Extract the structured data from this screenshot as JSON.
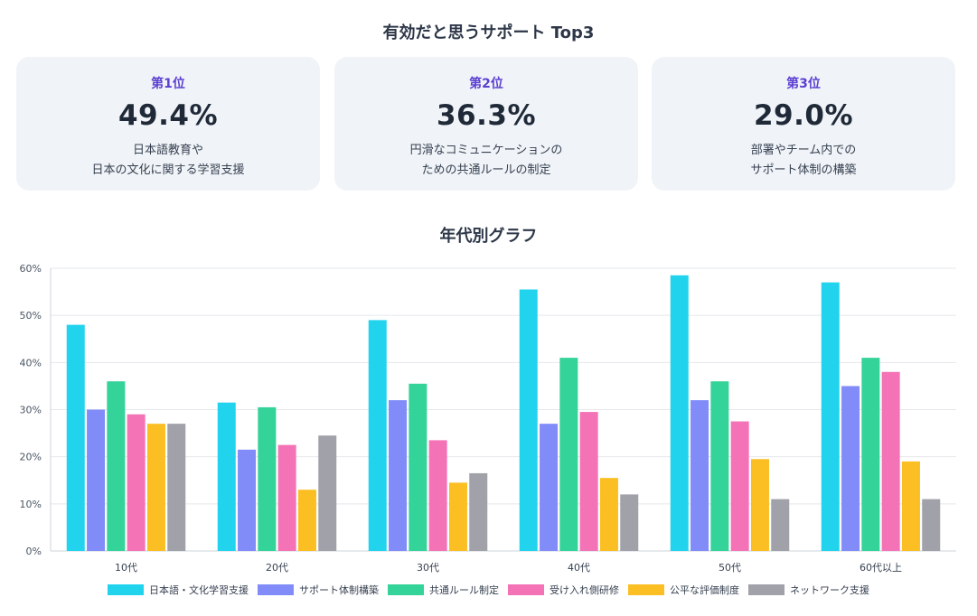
{
  "top3": {
    "title": "有効だと思うサポート Top3",
    "cards": [
      {
        "rank": "第1位",
        "value": "49.4%",
        "lines": [
          "日本語教育や",
          "日本の文化に関する学習支援"
        ]
      },
      {
        "rank": "第2位",
        "value": "36.3%",
        "lines": [
          "円滑なコミュニケーションの",
          "ための共通ルールの制定"
        ]
      },
      {
        "rank": "第3位",
        "value": "29.0%",
        "lines": [
          "部署やチーム内での",
          "サポート体制の構築"
        ]
      }
    ]
  },
  "chart_title": "年代別グラフ",
  "chart_data": {
    "type": "bar",
    "title": "年代別グラフ",
    "xlabel": "",
    "ylabel": "",
    "ylim": [
      0,
      60
    ],
    "yticks": [
      0,
      10,
      20,
      30,
      40,
      50,
      60
    ],
    "ytick_labels": [
      "0%",
      "10%",
      "20%",
      "30%",
      "40%",
      "50%",
      "60%"
    ],
    "grid": true,
    "legend_position": "bottom",
    "categories": [
      "10代",
      "20代",
      "30代",
      "40代",
      "50代",
      "60代以上"
    ],
    "series": [
      {
        "name": "日本語・文化学習支援",
        "color": "#22d3ee",
        "values": [
          48,
          31.5,
          49,
          55.5,
          58.5,
          57
        ]
      },
      {
        "name": "サポート体制構築",
        "color": "#818cf8",
        "values": [
          30,
          21.5,
          32,
          27,
          32,
          35
        ]
      },
      {
        "name": "共通ルール制定",
        "color": "#34d399",
        "values": [
          36,
          30.5,
          35.5,
          41,
          36,
          41
        ]
      },
      {
        "name": "受け入れ側研修",
        "color": "#f472b6",
        "values": [
          29,
          22.5,
          23.5,
          29.5,
          27.5,
          38
        ]
      },
      {
        "name": "公平な評価制度",
        "color": "#fbbf24",
        "values": [
          27,
          13,
          14.5,
          15.5,
          19.5,
          19
        ]
      },
      {
        "name": "ネットワーク支援",
        "color": "#a1a1aa",
        "values": [
          27,
          24.5,
          16.5,
          12,
          11,
          11
        ]
      }
    ]
  }
}
